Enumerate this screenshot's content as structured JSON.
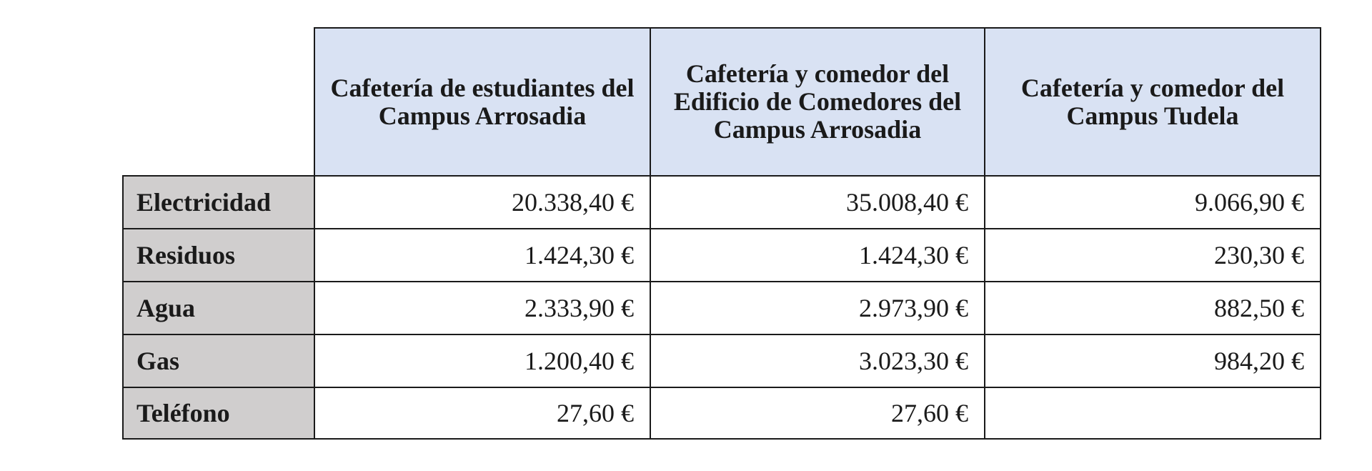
{
  "table": {
    "columns": [
      "Cafetería de estudiantes del Campus Arrosadia",
      "Cafetería y comedor del Edificio de Comedores del Campus Arrosadia",
      "Cafetería y comedor del Campus Tudela"
    ],
    "rows": [
      {
        "label": "Electricidad",
        "values": [
          "20.338,40 €",
          "35.008,40 €",
          "9.066,90 €"
        ]
      },
      {
        "label": "Residuos",
        "values": [
          "1.424,30 €",
          "1.424,30 €",
          "230,30 €"
        ]
      },
      {
        "label": "Agua",
        "values": [
          "2.333,90 €",
          "2.973,90 €",
          "882,50 €"
        ]
      },
      {
        "label": "Gas",
        "values": [
          "1.200,40 €",
          "3.023,30 €",
          "984,20 €"
        ]
      },
      {
        "label": "Teléfono",
        "values": [
          "27,60 €",
          "27,60 €",
          ""
        ]
      }
    ]
  },
  "colors": {
    "column_header_bg": "#d9e2f3",
    "row_header_bg": "#d0cece",
    "border": "#1a1a1a"
  }
}
